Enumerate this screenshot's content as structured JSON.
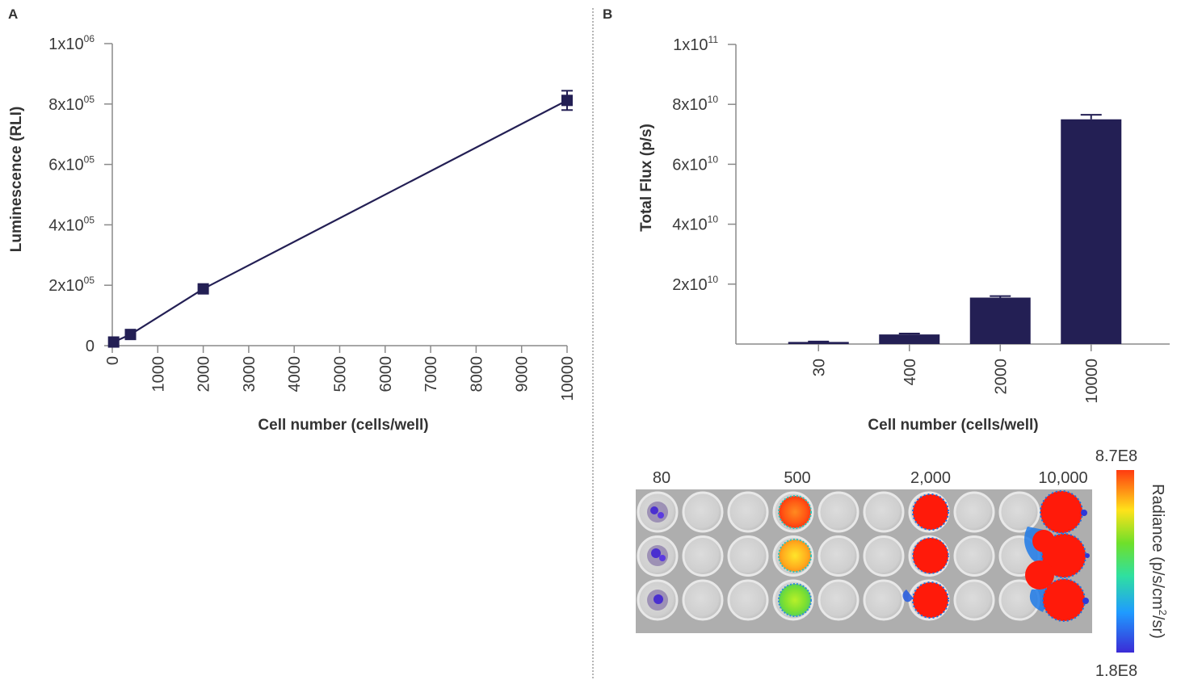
{
  "panels": {
    "a_label": "A",
    "b_label": "B"
  },
  "chart_data": [
    {
      "type": "line",
      "panel": "A",
      "xlabel": "Cell number (cells/well)",
      "ylabel": "Luminescence (RLI)",
      "xlim": [
        0,
        10000
      ],
      "ylim": [
        0,
        1000000
      ],
      "x_ticks": [
        "0",
        "1000",
        "2000",
        "3000",
        "4000",
        "5000",
        "6000",
        "7000",
        "8000",
        "9000",
        "10000"
      ],
      "y_ticks": [
        {
          "value": 0,
          "base": "0",
          "exp": ""
        },
        {
          "value": 200000,
          "base": "2x10",
          "exp": "05"
        },
        {
          "value": 400000,
          "base": "4x10",
          "exp": "05"
        },
        {
          "value": 600000,
          "base": "6x10",
          "exp": "05"
        },
        {
          "value": 800000,
          "base": "8x10",
          "exp": "05"
        },
        {
          "value": 1000000,
          "base": "1x10",
          "exp": "06"
        }
      ],
      "series": [
        {
          "points": [
            {
              "x": 30,
              "y": 12000,
              "err": 0
            },
            {
              "x": 400,
              "y": 37000,
              "err": 0
            },
            {
              "x": 2000,
              "y": 188000,
              "err": 0
            },
            {
              "x": 10000,
              "y": 812000,
              "err": 32000
            }
          ]
        }
      ],
      "color": "#231f54"
    },
    {
      "type": "bar",
      "panel": "B",
      "xlabel": "Cell number (cells/well)",
      "ylabel": "Total Flux (p/s)",
      "ylim": [
        0,
        100000000000
      ],
      "categories": [
        "30",
        "400",
        "2000",
        "10000"
      ],
      "values": [
        700000000,
        3200000000,
        15500000000,
        75000000000
      ],
      "errors": [
        150000000,
        300000000,
        500000000,
        1500000000
      ],
      "y_ticks": [
        {
          "value": 20000000000,
          "base": "2x10",
          "exp": "10"
        },
        {
          "value": 40000000000,
          "base": "4x10",
          "exp": "10"
        },
        {
          "value": 60000000000,
          "base": "6x10",
          "exp": "10"
        },
        {
          "value": 80000000000,
          "base": "8x10",
          "exp": "10"
        },
        {
          "value": 100000000000,
          "base": "1x10",
          "exp": "11"
        }
      ],
      "color": "#231f54"
    }
  ],
  "plate_image": {
    "column_labels": [
      "80",
      "500",
      "2,000",
      "10,000"
    ],
    "colorbar": {
      "max": "8.7E8",
      "min": "1.8E8",
      "title_base": "Radiance (p/s/cm",
      "title_sup": "2",
      "title_end": "/sr)"
    }
  }
}
